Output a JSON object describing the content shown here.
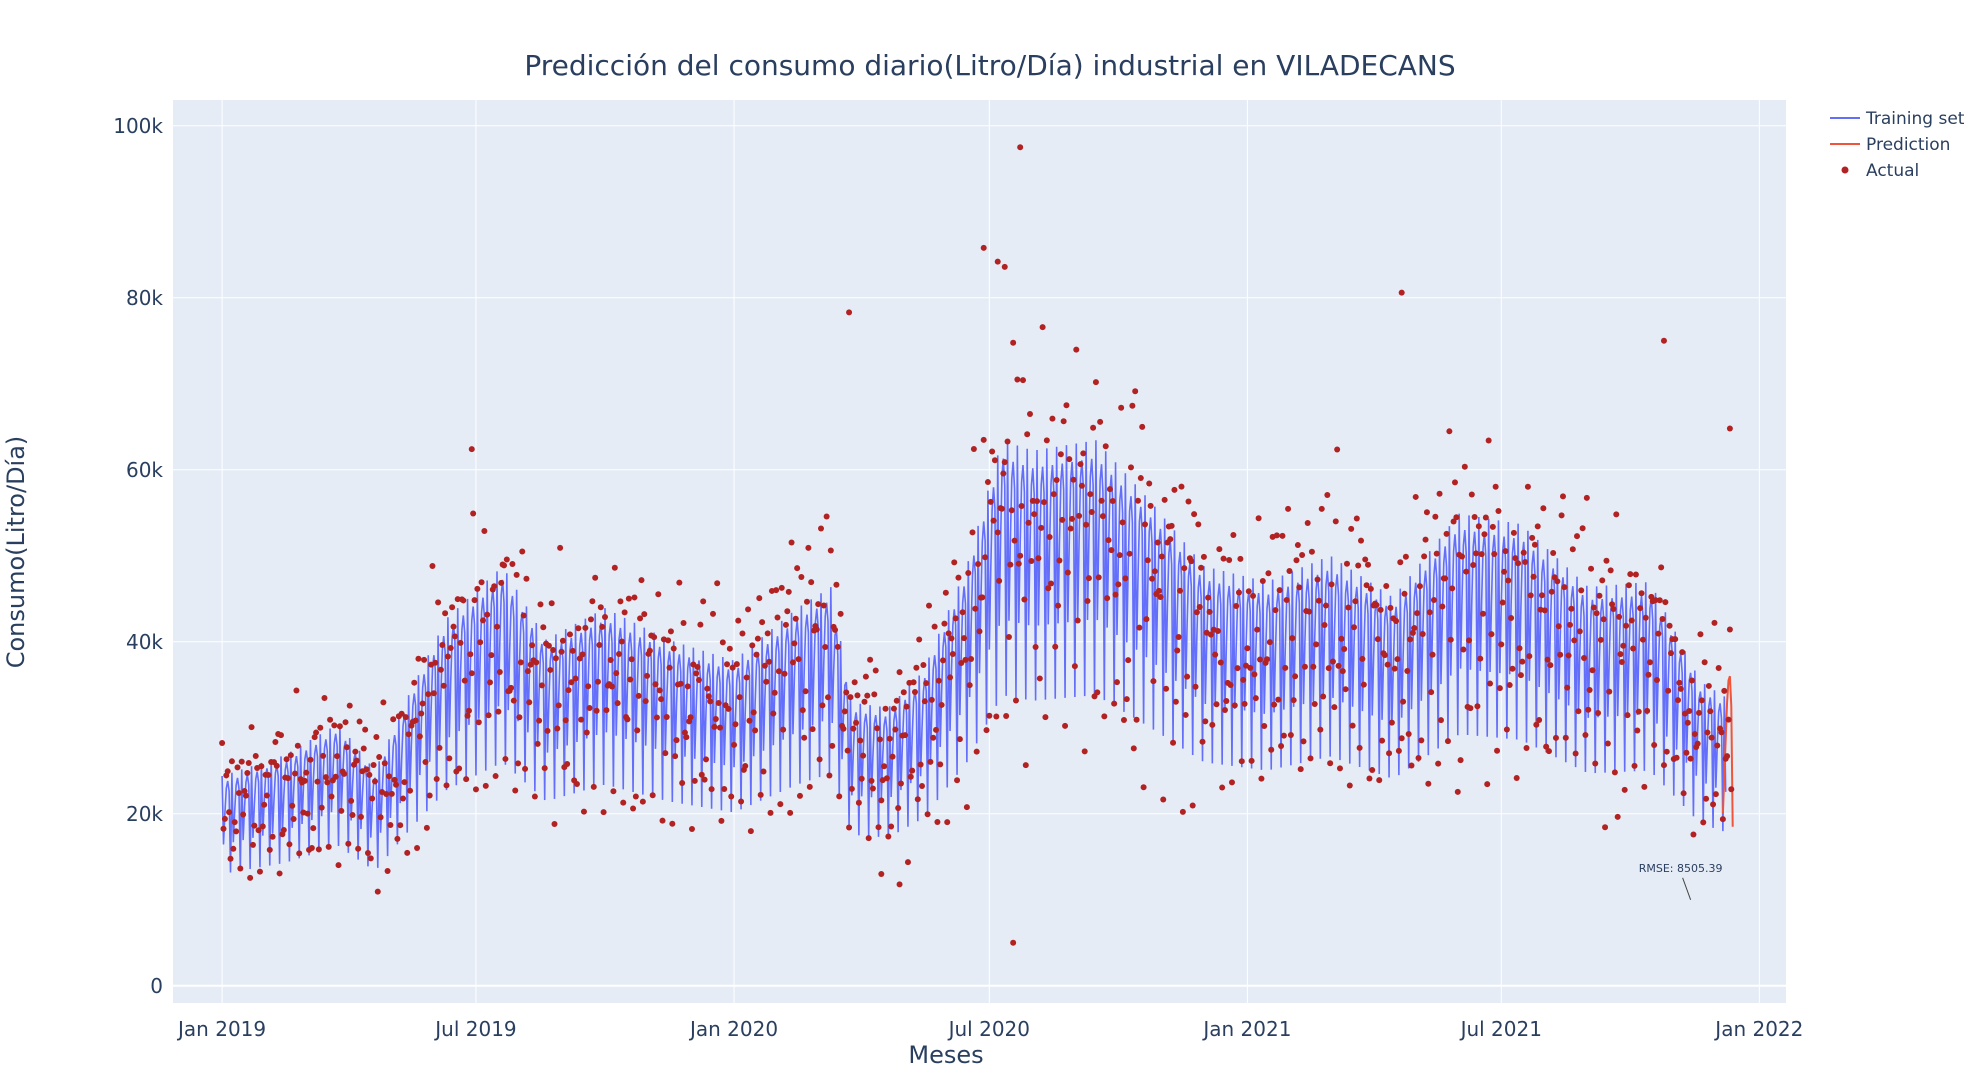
{
  "chart_data": {
    "type": "line",
    "title": "Predicción del consumo diario(Litro/Día) industrial en VILADECANS",
    "xlabel": "Meses",
    "ylabel": "Consumo(Litro/Día)",
    "x_range": [
      "2018-11-27",
      "2022-01-20"
    ],
    "ylim": [
      -2000,
      103000
    ],
    "x_ticks": [
      {
        "date": "2019-01-01",
        "label": "Jan 2019"
      },
      {
        "date": "2019-07-01",
        "label": "Jul 2019"
      },
      {
        "date": "2020-01-01",
        "label": "Jan 2020"
      },
      {
        "date": "2020-07-01",
        "label": "Jul 2020"
      },
      {
        "date": "2021-01-01",
        "label": "Jan 2021"
      },
      {
        "date": "2021-07-01",
        "label": "Jul 2021"
      },
      {
        "date": "2022-01-01",
        "label": "Jan 2022"
      }
    ],
    "y_ticks": [
      {
        "value": 0,
        "label": "0"
      },
      {
        "value": 20000,
        "label": "20k"
      },
      {
        "value": 40000,
        "label": "40k"
      },
      {
        "value": 60000,
        "label": "60k"
      },
      {
        "value": 80000,
        "label": "80k"
      },
      {
        "value": 100000,
        "label": "100k"
      }
    ],
    "grid": true,
    "legend_position": "top-right",
    "series": [
      {
        "name": "Training set",
        "kind": "line",
        "color": "#636efa",
        "weekly_pattern": [
          1.22,
          0.82,
          1.0,
          1.14,
          1.18,
          1.12,
          0.65
        ],
        "level_points": [
          {
            "date": "2019-01-01",
            "value": 20000
          },
          {
            "date": "2019-02-15",
            "value": 22000
          },
          {
            "date": "2019-03-25",
            "value": 25000
          },
          {
            "date": "2019-04-20",
            "value": 20500
          },
          {
            "date": "2019-05-15",
            "value": 28000
          },
          {
            "date": "2019-06-10",
            "value": 35000
          },
          {
            "date": "2019-07-20",
            "value": 40000
          },
          {
            "date": "2019-08-20",
            "value": 33000
          },
          {
            "date": "2019-10-01",
            "value": 36000
          },
          {
            "date": "2019-11-15",
            "value": 33000
          },
          {
            "date": "2020-01-01",
            "value": 31000
          },
          {
            "date": "2020-02-15",
            "value": 36000
          },
          {
            "date": "2020-03-10",
            "value": 38000
          },
          {
            "date": "2020-03-25",
            "value": 27000
          },
          {
            "date": "2020-04-20",
            "value": 26500
          },
          {
            "date": "2020-05-15",
            "value": 30000
          },
          {
            "date": "2020-06-15",
            "value": 40000
          },
          {
            "date": "2020-07-10",
            "value": 52000
          },
          {
            "date": "2020-08-01",
            "value": 51000
          },
          {
            "date": "2020-09-15",
            "value": 52000
          },
          {
            "date": "2020-10-25",
            "value": 46000
          },
          {
            "date": "2020-12-01",
            "value": 40000
          },
          {
            "date": "2021-01-15",
            "value": 38500
          },
          {
            "date": "2021-03-01",
            "value": 41000
          },
          {
            "date": "2021-04-15",
            "value": 37000
          },
          {
            "date": "2021-06-01",
            "value": 45000
          },
          {
            "date": "2021-07-15",
            "value": 44000
          },
          {
            "date": "2021-09-01",
            "value": 38000
          },
          {
            "date": "2021-10-15",
            "value": 38500
          },
          {
            "date": "2021-11-20",
            "value": 29000
          },
          {
            "date": "2021-12-08",
            "value": 27500
          }
        ],
        "end_date": "2021-12-08"
      },
      {
        "name": "Prediction",
        "kind": "line",
        "color": "#ef553b",
        "points": [
          {
            "date": "2021-12-06",
            "value": 20000
          },
          {
            "date": "2021-12-09",
            "value": 33000
          },
          {
            "date": "2021-12-10",
            "value": 35500
          },
          {
            "date": "2021-12-11",
            "value": 36000
          },
          {
            "date": "2021-12-12",
            "value": 32500
          },
          {
            "date": "2021-12-13",
            "value": 18500
          }
        ]
      },
      {
        "name": "Actual",
        "kind": "markers",
        "color": "#b22222",
        "start_date": "2019-01-01",
        "end_date": "2021-12-12",
        "noise_scale": 0.2,
        "outliers": [
          {
            "date": "2020-06-27",
            "value": 85800
          },
          {
            "date": "2020-07-07",
            "value": 84200
          },
          {
            "date": "2020-07-12",
            "value": 83600
          },
          {
            "date": "2020-07-23",
            "value": 97500
          },
          {
            "date": "2020-07-18",
            "value": 5000
          },
          {
            "date": "2021-04-21",
            "value": 80600
          },
          {
            "date": "2020-03-23",
            "value": 78300
          },
          {
            "date": "2019-06-28",
            "value": 62400
          },
          {
            "date": "2021-10-25",
            "value": 75000
          },
          {
            "date": "2021-12-11",
            "value": 64800
          },
          {
            "date": "2020-04-28",
            "value": 11800
          },
          {
            "date": "2020-04-15",
            "value": 13000
          }
        ]
      }
    ],
    "annotations": [
      {
        "text": "RMSE: 8505.39",
        "date": "2021-11-13",
        "value": 10000
      }
    ]
  }
}
